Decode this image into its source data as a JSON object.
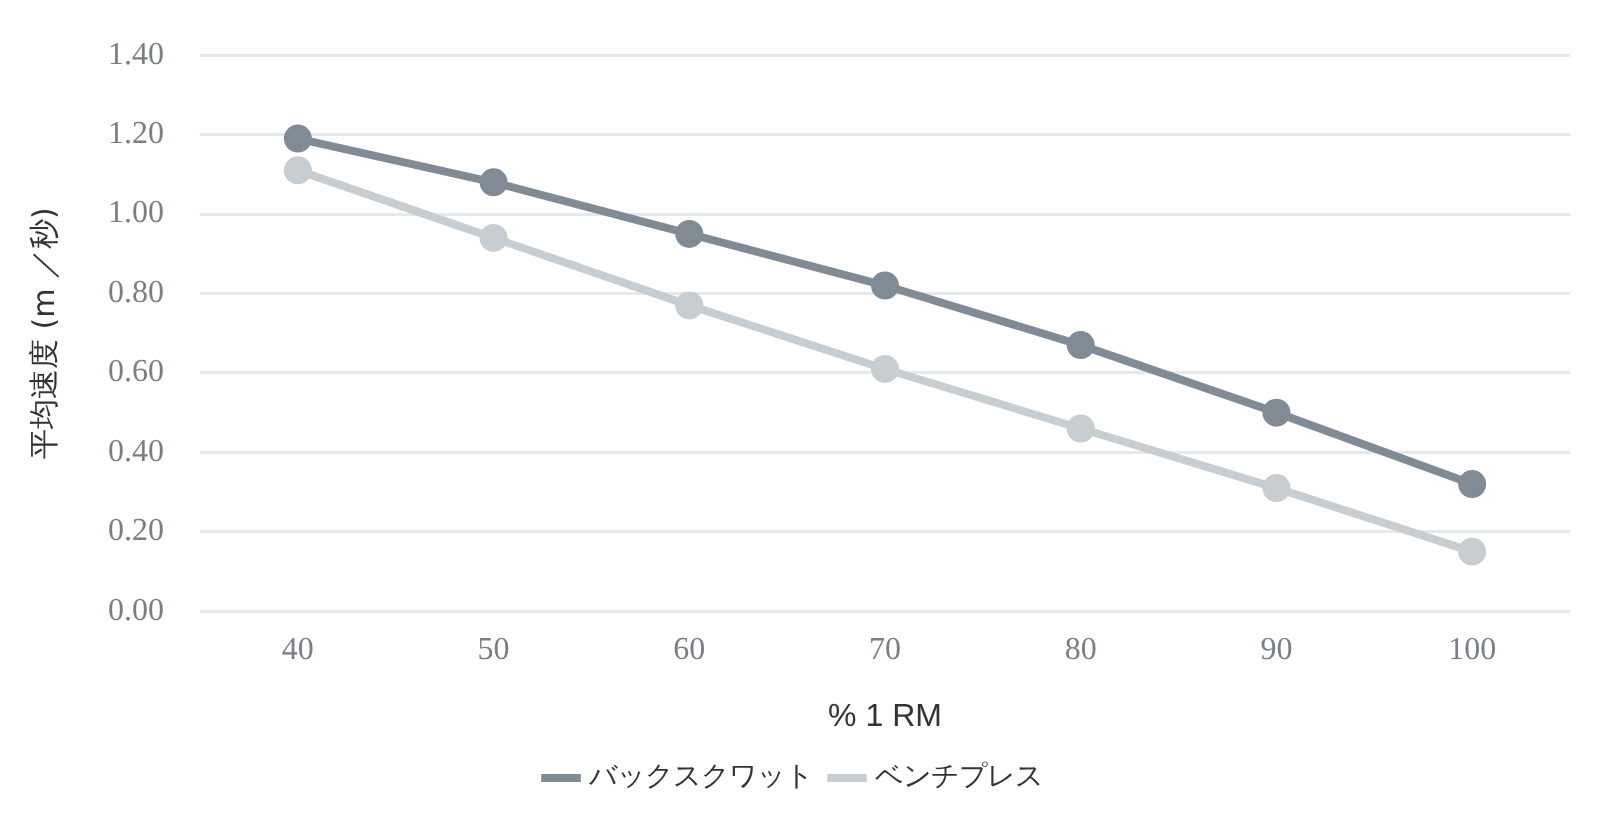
{
  "chart_data": {
    "type": "line",
    "xlabel": "% 1 RM",
    "ylabel": "平均速度 (m ／秒)",
    "categories": [
      "40",
      "50",
      "60",
      "70",
      "80",
      "90",
      "100"
    ],
    "series": [
      {
        "name": "バックスクワット",
        "color": "#808b95",
        "values": [
          1.19,
          1.08,
          0.95,
          0.82,
          0.67,
          0.5,
          0.32
        ]
      },
      {
        "name": "ベンチプレス",
        "color": "#c8cdd1",
        "values": [
          1.11,
          0.94,
          0.77,
          0.61,
          0.46,
          0.31,
          0.15
        ]
      }
    ],
    "ylim": [
      0,
      1.4
    ],
    "yticks": [
      {
        "value": 0,
        "label": "0.00"
      },
      {
        "value": 0.2,
        "label": "0.20"
      },
      {
        "value": 0.4,
        "label": "0.40"
      },
      {
        "value": 0.6,
        "label": "0.60"
      },
      {
        "value": 0.8,
        "label": "0.80"
      },
      {
        "value": 1.0,
        "label": "1.00"
      },
      {
        "value": 1.2,
        "label": "1.20"
      },
      {
        "value": 1.4,
        "label": "1.40"
      }
    ],
    "grid": "y",
    "legend": "bottom",
    "marker": "circle",
    "line_style": "solid"
  }
}
